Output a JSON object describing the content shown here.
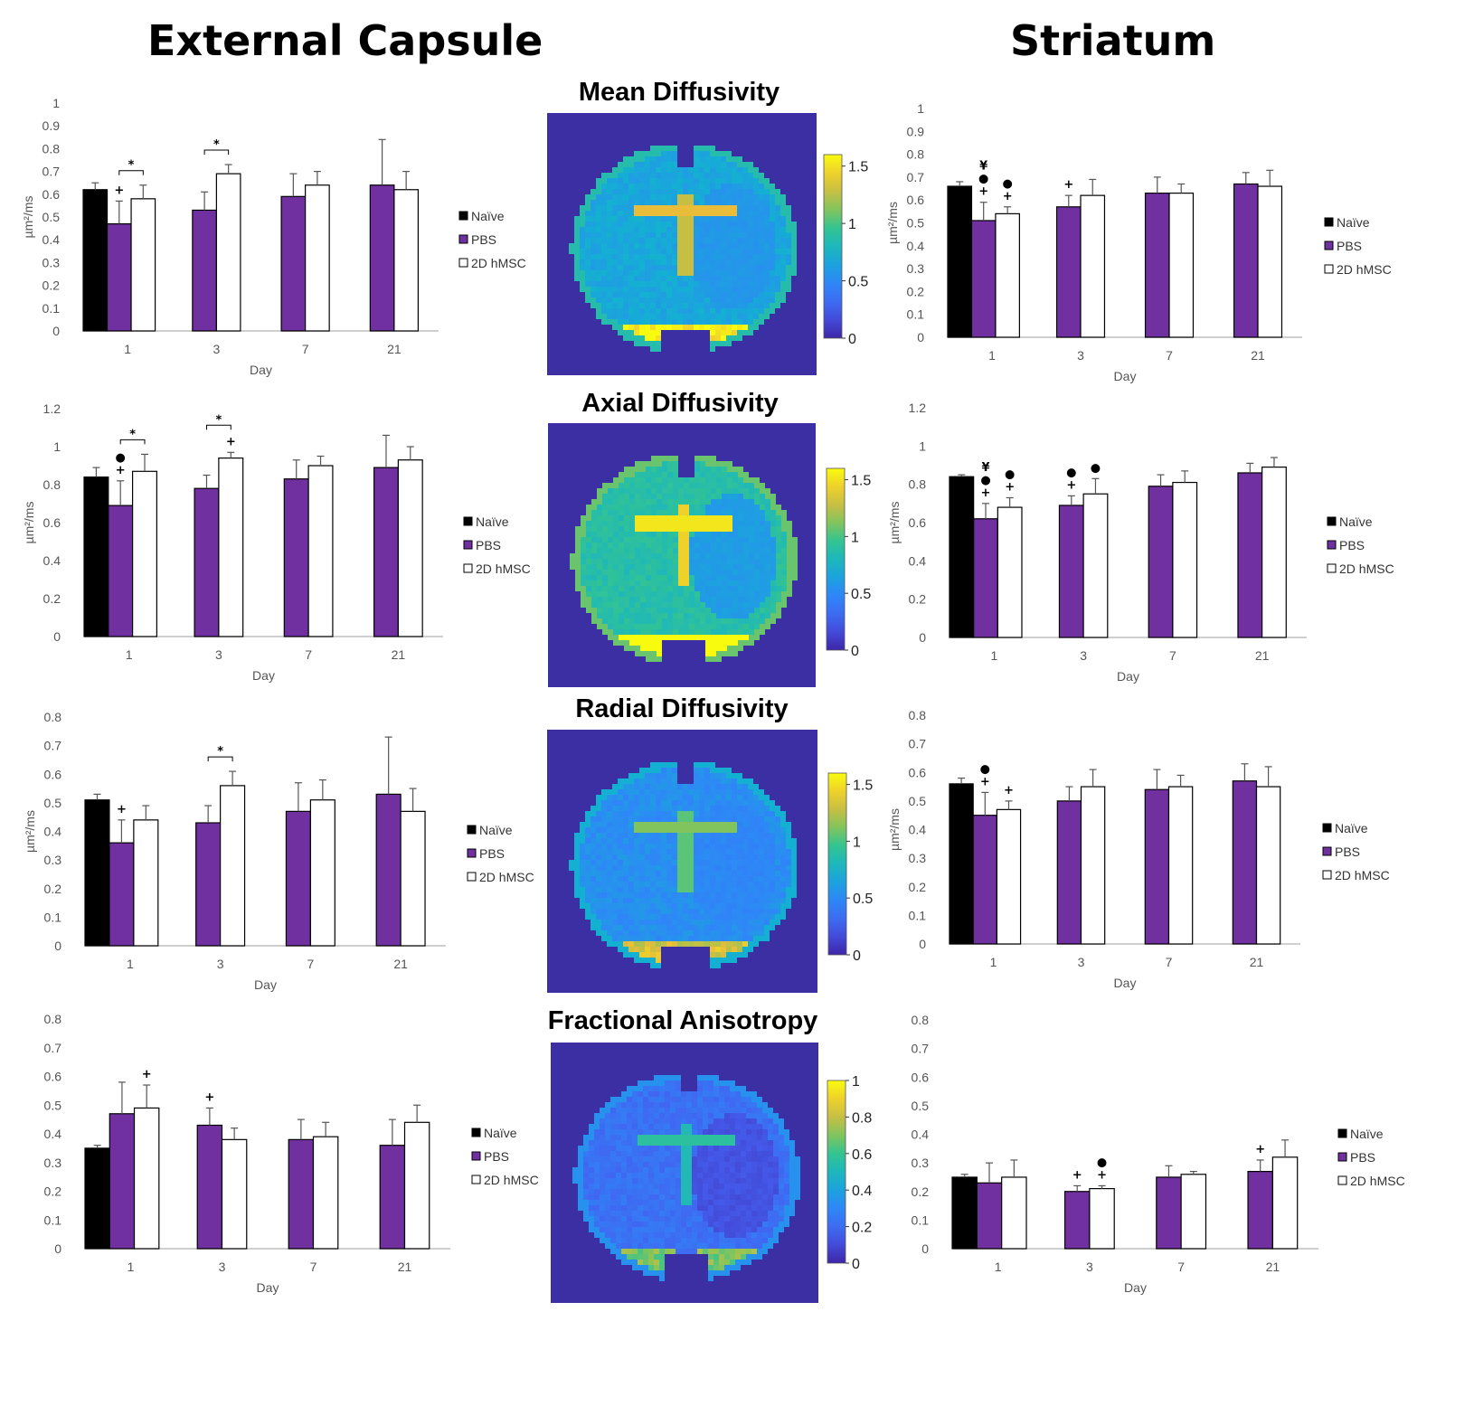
{
  "titles": {
    "left": "External Capsule",
    "right": "Striatum"
  },
  "map_titles": [
    "Mean Diffusivity",
    "Axial Diffusivity",
    "Radial Diffusivity",
    "Fractional Anisotropy"
  ],
  "colors": {
    "naive": "#000000",
    "pbs": "#7030a0",
    "hmsc": "#ffffff",
    "axis": "#bfbfbf",
    "map_bg": "#3b2fa3"
  },
  "chart_data": [
    {
      "id": "ec-md",
      "type": "bar",
      "categories": [
        "1",
        "3",
        "7",
        "21"
      ],
      "xlabel": "Day",
      "ylabel": "µm²/ms",
      "ylim": [
        0,
        1
      ],
      "ticks": [
        "0",
        "0.1",
        "0.2",
        "0.3",
        "0.4",
        "0.5",
        "0.6",
        "0.7",
        "0.8",
        "0.9",
        "1"
      ],
      "tickvals": [
        0,
        0.1,
        0.2,
        0.3,
        0.4,
        0.5,
        0.6,
        0.7,
        0.8,
        0.9,
        1
      ],
      "legend": [
        "Naïve",
        "PBS",
        "2D hMSC"
      ],
      "series": [
        {
          "name": "Naïve",
          "values": [
            0.62,
            null,
            null,
            null
          ],
          "err": [
            0.03,
            null,
            null,
            null
          ]
        },
        {
          "name": "PBS",
          "values": [
            0.47,
            0.53,
            0.59,
            0.64
          ],
          "err": [
            0.1,
            0.08,
            0.1,
            0.2
          ]
        },
        {
          "name": "2D hMSC",
          "values": [
            0.58,
            0.69,
            0.64,
            0.62
          ],
          "err": [
            0.06,
            0.04,
            0.06,
            0.08
          ]
        }
      ],
      "annotations": [
        {
          "cat": 0,
          "s": 1,
          "text": "+"
        },
        {
          "cat": 0,
          "bracket": [
            1,
            2
          ],
          "text": "*"
        },
        {
          "cat": 1,
          "bracket": [
            1,
            2
          ],
          "text": "*"
        }
      ]
    },
    {
      "id": "ec-ad",
      "type": "bar",
      "categories": [
        "1",
        "3",
        "7",
        "21"
      ],
      "xlabel": "Day",
      "ylabel": "µm²/ms",
      "ylim": [
        0,
        1.2
      ],
      "ticks": [
        "0",
        "0.2",
        "0.4",
        "0.6",
        "0.8",
        "1",
        "1.2"
      ],
      "tickvals": [
        0,
        0.2,
        0.4,
        0.6,
        0.8,
        1,
        1.2
      ],
      "legend": [
        "Naïve",
        "PBS",
        "2D hMSC"
      ],
      "series": [
        {
          "name": "Naïve",
          "values": [
            0.84,
            null,
            null,
            null
          ],
          "err": [
            0.05,
            null,
            null,
            null
          ]
        },
        {
          "name": "PBS",
          "values": [
            0.69,
            0.78,
            0.83,
            0.89
          ],
          "err": [
            0.13,
            0.07,
            0.1,
            0.17
          ]
        },
        {
          "name": "2D hMSC",
          "values": [
            0.87,
            0.94,
            0.9,
            0.93
          ],
          "err": [
            0.09,
            0.03,
            0.05,
            0.07
          ]
        }
      ],
      "annotations": [
        {
          "cat": 0,
          "s": 1,
          "text": "+"
        },
        {
          "cat": 0,
          "s": 1,
          "text": "●",
          "level": 1
        },
        {
          "cat": 0,
          "bracket": [
            1,
            2
          ],
          "text": "*"
        },
        {
          "cat": 1,
          "s": 2,
          "text": "+"
        },
        {
          "cat": 1,
          "bracket": [
            1,
            2
          ],
          "text": "*",
          "level": 1
        }
      ]
    },
    {
      "id": "ec-rd",
      "type": "bar",
      "categories": [
        "1",
        "3",
        "7",
        "21"
      ],
      "xlabel": "Day",
      "ylabel": "µm²/ms",
      "ylim": [
        0,
        0.8
      ],
      "ticks": [
        "0",
        "0.1",
        "0.2",
        "0.3",
        "0.4",
        "0.5",
        "0.6",
        "0.7",
        "0.8"
      ],
      "tickvals": [
        0,
        0.1,
        0.2,
        0.3,
        0.4,
        0.5,
        0.6,
        0.7,
        0.8
      ],
      "legend": [
        "Naïve",
        "PBS",
        "2D hMSC"
      ],
      "series": [
        {
          "name": "Naïve",
          "values": [
            0.51,
            null,
            null,
            null
          ],
          "err": [
            0.02,
            null,
            null,
            null
          ]
        },
        {
          "name": "PBS",
          "values": [
            0.36,
            0.43,
            0.47,
            0.53
          ],
          "err": [
            0.08,
            0.06,
            0.1,
            0.2
          ]
        },
        {
          "name": "2D hMSC",
          "values": [
            0.44,
            0.56,
            0.51,
            0.47
          ],
          "err": [
            0.05,
            0.05,
            0.07,
            0.08
          ]
        }
      ],
      "annotations": [
        {
          "cat": 0,
          "s": 1,
          "text": "+"
        },
        {
          "cat": 1,
          "bracket": [
            1,
            2
          ],
          "text": "*"
        }
      ]
    },
    {
      "id": "ec-fa",
      "type": "bar",
      "categories": [
        "1",
        "3",
        "7",
        "21"
      ],
      "xlabel": "Day",
      "ylabel": "",
      "ylim": [
        0,
        0.8
      ],
      "ticks": [
        "0",
        "0.1",
        "0.2",
        "0.3",
        "0.4",
        "0.5",
        "0.6",
        "0.7",
        "0.8"
      ],
      "tickvals": [
        0,
        0.1,
        0.2,
        0.3,
        0.4,
        0.5,
        0.6,
        0.7,
        0.8
      ],
      "legend": [
        "Naïve",
        "PBS",
        "2D hMSC"
      ],
      "series": [
        {
          "name": "Naïve",
          "values": [
            0.35,
            null,
            null,
            null
          ],
          "err": [
            0.01,
            null,
            null,
            null
          ]
        },
        {
          "name": "PBS",
          "values": [
            0.47,
            0.43,
            0.38,
            0.36
          ],
          "err": [
            0.11,
            0.06,
            0.07,
            0.09
          ]
        },
        {
          "name": "2D hMSC",
          "values": [
            0.49,
            0.38,
            0.39,
            0.44
          ],
          "err": [
            0.08,
            0.04,
            0.05,
            0.06
          ]
        }
      ],
      "annotations": [
        {
          "cat": 0,
          "s": 2,
          "text": "+"
        },
        {
          "cat": 1,
          "s": 1,
          "text": "+"
        }
      ]
    },
    {
      "id": "st-md",
      "type": "bar",
      "categories": [
        "1",
        "3",
        "7",
        "21"
      ],
      "xlabel": "Day",
      "ylabel": "µm²/ms",
      "ylim": [
        0,
        1
      ],
      "ticks": [
        "0",
        "0.1",
        "0.2",
        "0.3",
        "0.4",
        "0.5",
        "0.6",
        "0.7",
        "0.8",
        "0.9",
        "1"
      ],
      "tickvals": [
        0,
        0.1,
        0.2,
        0.3,
        0.4,
        0.5,
        0.6,
        0.7,
        0.8,
        0.9,
        1
      ],
      "legend": [
        "Naïve",
        "PBS",
        "2D hMSC"
      ],
      "series": [
        {
          "name": "Naïve",
          "values": [
            0.66,
            null,
            null,
            null
          ],
          "err": [
            0.02,
            null,
            null,
            null
          ]
        },
        {
          "name": "PBS",
          "values": [
            0.51,
            0.57,
            0.63,
            0.67
          ],
          "err": [
            0.08,
            0.05,
            0.07,
            0.05
          ]
        },
        {
          "name": "2D hMSC",
          "values": [
            0.54,
            0.62,
            0.63,
            0.66
          ],
          "err": [
            0.03,
            0.07,
            0.04,
            0.07
          ]
        }
      ],
      "annotations": [
        {
          "cat": 0,
          "s": 1,
          "text": "+"
        },
        {
          "cat": 0,
          "s": 1,
          "text": "●",
          "level": 1
        },
        {
          "cat": 0,
          "s": 1,
          "text": "¥",
          "level": 2
        },
        {
          "cat": 0,
          "s": 2,
          "text": "+"
        },
        {
          "cat": 0,
          "s": 2,
          "text": "●",
          "level": 1
        },
        {
          "cat": 1,
          "s": 1,
          "text": "+"
        }
      ]
    },
    {
      "id": "st-ad",
      "type": "bar",
      "categories": [
        "1",
        "3",
        "7",
        "21"
      ],
      "xlabel": "Day",
      "ylabel": "µm²/ms",
      "ylim": [
        0,
        1.2
      ],
      "ticks": [
        "0",
        "0.2",
        "0.4",
        "0.6",
        "0.8",
        "1",
        "1.2"
      ],
      "tickvals": [
        0,
        0.2,
        0.4,
        0.6,
        0.8,
        1,
        1.2
      ],
      "legend": [
        "Naïve",
        "PBS",
        "2D hMSC"
      ],
      "series": [
        {
          "name": "Naïve",
          "values": [
            0.84,
            null,
            null,
            null
          ],
          "err": [
            0.01,
            null,
            null,
            null
          ]
        },
        {
          "name": "PBS",
          "values": [
            0.62,
            0.69,
            0.79,
            0.86
          ],
          "err": [
            0.08,
            0.05,
            0.06,
            0.05
          ]
        },
        {
          "name": "2D hMSC",
          "values": [
            0.68,
            0.75,
            0.81,
            0.89
          ],
          "err": [
            0.05,
            0.08,
            0.06,
            0.05
          ]
        }
      ],
      "annotations": [
        {
          "cat": 0,
          "s": 1,
          "text": "+"
        },
        {
          "cat": 0,
          "s": 1,
          "text": "●",
          "level": 1
        },
        {
          "cat": 0,
          "s": 1,
          "text": "¥",
          "level": 2
        },
        {
          "cat": 0,
          "s": 2,
          "text": "+"
        },
        {
          "cat": 0,
          "s": 2,
          "text": "●",
          "level": 1
        },
        {
          "cat": 1,
          "s": 1,
          "text": "+"
        },
        {
          "cat": 1,
          "s": 1,
          "text": "●",
          "level": 1
        },
        {
          "cat": 1,
          "s": 2,
          "text": "●"
        }
      ]
    },
    {
      "id": "st-rd",
      "type": "bar",
      "categories": [
        "1",
        "3",
        "7",
        "21"
      ],
      "xlabel": "Day",
      "ylabel": "µm²/ms",
      "ylim": [
        0,
        0.8
      ],
      "ticks": [
        "0",
        "0.1",
        "0.2",
        "0.3",
        "0.4",
        "0.5",
        "0.6",
        "0.7",
        "0.8"
      ],
      "tickvals": [
        0,
        0.1,
        0.2,
        0.3,
        0.4,
        0.5,
        0.6,
        0.7,
        0.8
      ],
      "legend": [
        "Naïve",
        "PBS",
        "2D hMSC"
      ],
      "series": [
        {
          "name": "Naïve",
          "values": [
            0.56,
            null,
            null,
            null
          ],
          "err": [
            0.02,
            null,
            null,
            null
          ]
        },
        {
          "name": "PBS",
          "values": [
            0.45,
            0.5,
            0.54,
            0.57
          ],
          "err": [
            0.08,
            0.05,
            0.07,
            0.06
          ]
        },
        {
          "name": "2D hMSC",
          "values": [
            0.47,
            0.55,
            0.55,
            0.55
          ],
          "err": [
            0.03,
            0.06,
            0.04,
            0.07
          ]
        }
      ],
      "annotations": [
        {
          "cat": 0,
          "s": 1,
          "text": "+"
        },
        {
          "cat": 0,
          "s": 1,
          "text": "●",
          "level": 1
        },
        {
          "cat": 0,
          "s": 2,
          "text": "+"
        }
      ]
    },
    {
      "id": "st-fa",
      "type": "bar",
      "categories": [
        "1",
        "3",
        "7",
        "21"
      ],
      "xlabel": "Day",
      "ylabel": "",
      "ylim": [
        0,
        0.8
      ],
      "ticks": [
        "0",
        "0.1",
        "0.2",
        "0.3",
        "0.4",
        "0.5",
        "0.6",
        "0.7",
        "0.8"
      ],
      "tickvals": [
        0,
        0.1,
        0.2,
        0.3,
        0.4,
        0.5,
        0.6,
        0.7,
        0.8
      ],
      "legend": [
        "Naïve",
        "PBS",
        "2D hMSC"
      ],
      "series": [
        {
          "name": "Naïve",
          "values": [
            0.25,
            null,
            null,
            null
          ],
          "err": [
            0.01,
            null,
            null,
            null
          ]
        },
        {
          "name": "PBS",
          "values": [
            0.23,
            0.2,
            0.25,
            0.27
          ],
          "err": [
            0.07,
            0.02,
            0.04,
            0.04
          ]
        },
        {
          "name": "2D hMSC",
          "values": [
            0.25,
            0.21,
            0.26,
            0.32
          ],
          "err": [
            0.06,
            0.01,
            0.01,
            0.06
          ]
        }
      ],
      "annotations": [
        {
          "cat": 1,
          "s": 1,
          "text": "+"
        },
        {
          "cat": 1,
          "s": 2,
          "text": "+"
        },
        {
          "cat": 1,
          "s": 2,
          "text": "●",
          "level": 1
        },
        {
          "cat": 3,
          "s": 1,
          "text": "+"
        }
      ]
    }
  ],
  "colorbars": [
    {
      "ticks": [
        "0",
        "0.5",
        "1",
        "1.5"
      ],
      "tickvals": [
        0,
        0.5,
        1,
        1.5
      ],
      "max": 1.6
    },
    {
      "ticks": [
        "0",
        "0.5",
        "1",
        "1.5"
      ],
      "tickvals": [
        0,
        0.5,
        1,
        1.5
      ],
      "max": 1.6
    },
    {
      "ticks": [
        "0",
        "0.5",
        "1",
        "1.5"
      ],
      "tickvals": [
        0,
        0.5,
        1,
        1.5
      ],
      "max": 1.6
    },
    {
      "ticks": [
        "0",
        "0.2",
        "0.4",
        "0.6",
        "0.8",
        "1"
      ],
      "tickvals": [
        0,
        0.2,
        0.4,
        0.6,
        0.8,
        1
      ],
      "max": 1.0
    }
  ]
}
